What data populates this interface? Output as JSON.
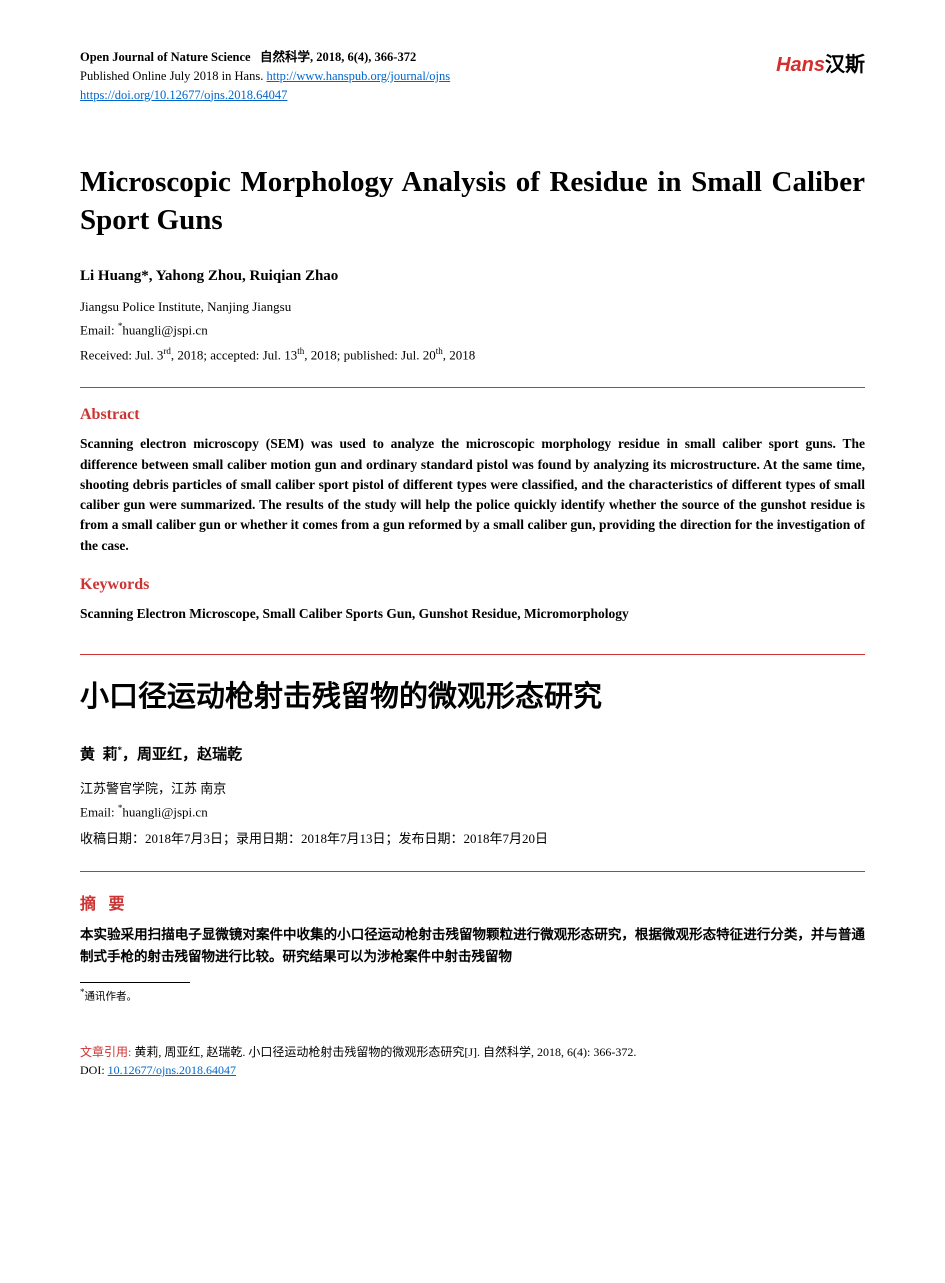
{
  "colors": {
    "accent": "#cc3333",
    "link": "#0066cc",
    "text": "#000000",
    "background": "#ffffff",
    "logo_red": "#d32f2f"
  },
  "header": {
    "journal_en": "Open Journal of Nature Science",
    "journal_cn": "自然科学",
    "issue": "2018, 6(4), 366-372",
    "published_line_prefix": "Published Online July 2018 in Hans.",
    "journal_url": "http://www.hanspub.org/journal/ojns",
    "doi_url": "https://doi.org/10.12677/ojns.2018.64047"
  },
  "logo": {
    "en": "Hans",
    "cn": "汉斯"
  },
  "title": "Microscopic Morphology Analysis of Residue in Small Caliber Sport Guns",
  "authors": "Li Huang*, Yahong Zhou, Ruiqian Zhao",
  "affiliation": "Jiangsu Police Institute, Nanjing Jiangsu",
  "email_label": "Email:",
  "email": "huangli@jspi.cn",
  "dates_en": {
    "received_label": "Received:",
    "received_month": "Jul.",
    "received_day": "3",
    "received_ord": "rd",
    "received_year": "2018",
    "accepted_label": "accepted:",
    "accepted_month": "Jul.",
    "accepted_day": "13",
    "accepted_ord": "th",
    "accepted_year": "2018",
    "published_label": "published:",
    "published_month": "Jul.",
    "published_day": "20",
    "published_ord": "th",
    "published_year": "2018"
  },
  "abstract_heading": "Abstract",
  "abstract_body": "Scanning electron microscopy (SEM) was used to analyze the microscopic morphology residue in small caliber sport guns. The difference between small caliber motion gun and ordinary standard pistol was found by analyzing its microstructure. At the same time, shooting debris particles of small caliber sport pistol of different types were classified, and the characteristics of different types of small caliber gun were summarized. The results of the study will help the police quickly identify whether the source of the gunshot residue is from a small caliber gun or whether it comes from a gun reformed by a small caliber gun, providing the direction for the investigation of the case.",
  "keywords_heading": "Keywords",
  "keywords_body": "Scanning Electron Microscope, Small Caliber Sports Gun, Gunshot Residue, Micromorphology",
  "title_cn": "小口径运动枪射击残留物的微观形态研究",
  "authors_cn": {
    "a1_surname": "黄",
    "a1_given": "莉",
    "a2": "周亚红",
    "a3": "赵瑞乾"
  },
  "affiliation_cn": "江苏警官学院，江苏 南京",
  "dates_cn": "收稿日期：2018年7月3日；录用日期：2018年7月13日；发布日期：2018年7月20日",
  "abstract_heading_cn": "摘 要",
  "abstract_body_cn": "本实验采用扫描电子显微镜对案件中收集的小口径运动枪射击残留物颗粒进行微观形态研究，根据微观形态特征进行分类，并与普通制式手枪的射击残留物进行比较。研究结果可以为涉枪案件中射击残留物",
  "footnote": "通讯作者。",
  "footer": {
    "cite_label": "文章引用:",
    "cite_body": "黄莉, 周亚红, 赵瑞乾. 小口径运动枪射击残留物的微观形态研究[J]. 自然科学, 2018, 6(4): 366-372.",
    "doi_label": "DOI:",
    "doi": "10.12677/ojns.2018.64047"
  }
}
